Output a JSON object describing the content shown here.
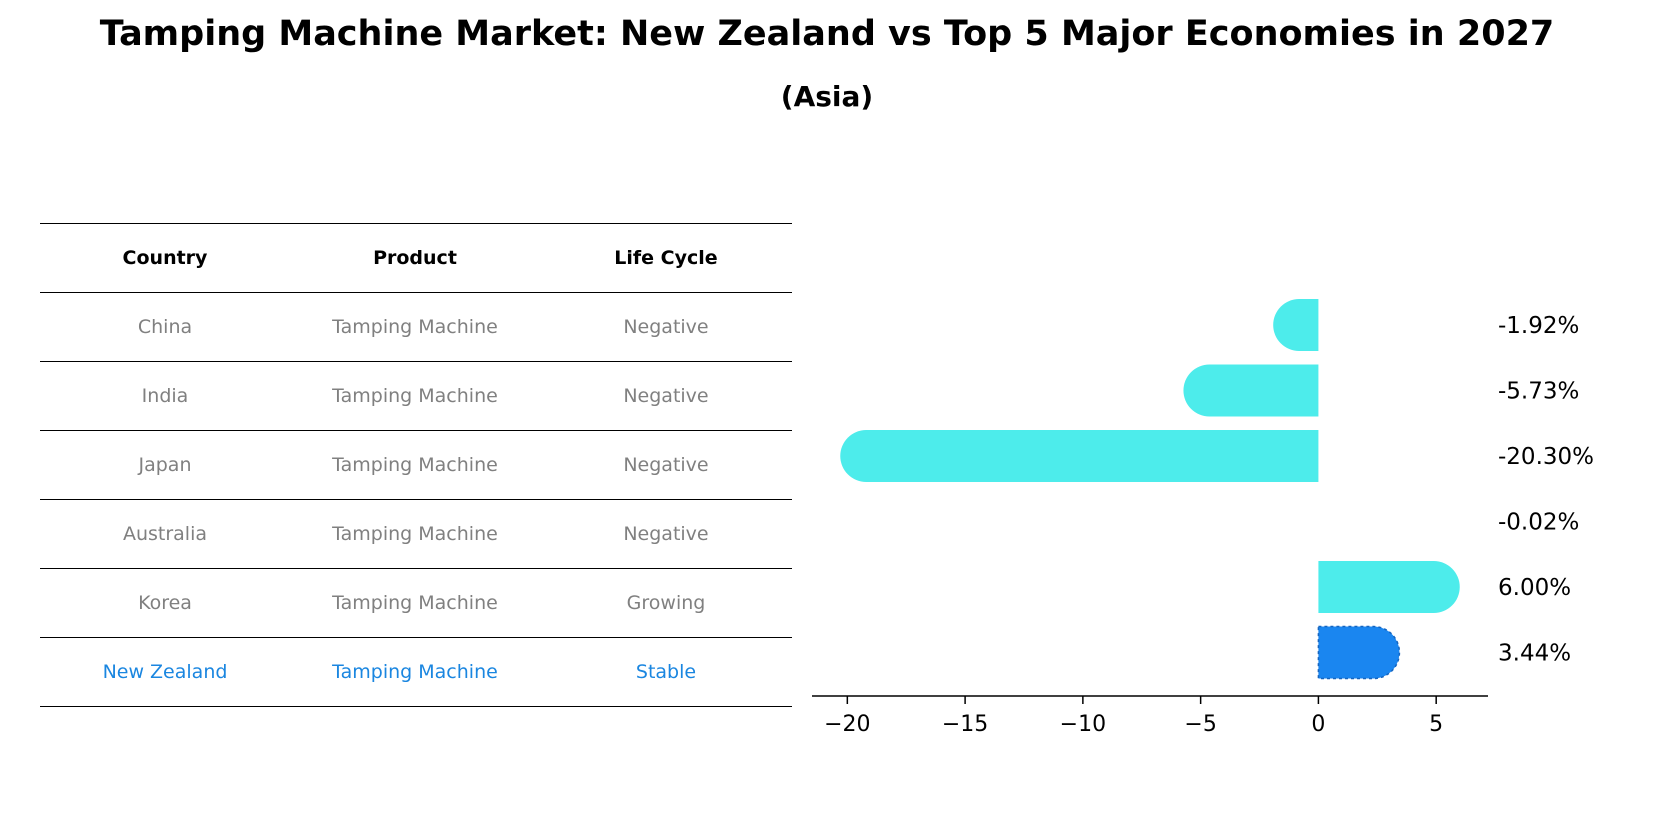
{
  "title": "Tamping Machine Market: New Zealand vs Top 5 Major Economies in 2027",
  "subtitle": "(Asia)",
  "table": {
    "headers": [
      "Country",
      "Product",
      "Life Cycle"
    ],
    "rows": [
      [
        "China",
        "Tamping Machine",
        "Negative"
      ],
      [
        "India",
        "Tamping Machine",
        "Negative"
      ],
      [
        "Japan",
        "Tamping Machine",
        "Negative"
      ],
      [
        "Australia",
        "Tamping Machine",
        "Negative"
      ],
      [
        "Korea",
        "Tamping Machine",
        "Growing"
      ],
      [
        "New Zealand",
        "Tamping Machine",
        "Stable"
      ]
    ]
  },
  "colors": {
    "bar": "#4deceb",
    "highlight": "#1a86f0",
    "highlight_text": "#1a86e0",
    "muted_text": "#808080"
  },
  "chart_data": {
    "type": "bar",
    "orientation": "horizontal",
    "categories": [
      "China",
      "India",
      "Japan",
      "Australia",
      "Korea",
      "New Zealand"
    ],
    "values": [
      -1.92,
      -5.73,
      -20.3,
      -0.02,
      6.0,
      3.44
    ],
    "data_labels": [
      "-1.92%",
      "-5.73%",
      "-20.30%",
      "-0.02%",
      "6.00%",
      "3.44%"
    ],
    "highlight_index": 5,
    "xlim": [
      -21.5,
      7.2
    ],
    "xticks": [
      -20,
      -15,
      -10,
      -5,
      0,
      5
    ],
    "xtick_labels": [
      "−20",
      "−15",
      "−10",
      "−5",
      "0",
      "5"
    ],
    "grid": false
  }
}
